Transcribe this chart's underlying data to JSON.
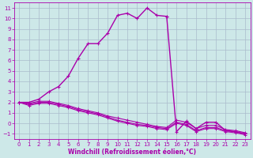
{
  "xlabel": "Windchill (Refroidissement éolien,°C)",
  "bg_color": "#cde8e8",
  "line_color": "#aa00aa",
  "grid_color": "#aabbcc",
  "xlim_min": -0.5,
  "xlim_max": 23.5,
  "ylim_min": -1.5,
  "ylim_max": 11.5,
  "xticks": [
    0,
    1,
    2,
    3,
    4,
    5,
    6,
    7,
    8,
    9,
    10,
    11,
    12,
    13,
    14,
    15,
    16,
    17,
    18,
    19,
    20,
    21,
    22,
    23
  ],
  "yticks": [
    -1,
    0,
    1,
    2,
    3,
    4,
    5,
    6,
    7,
    8,
    9,
    10,
    11
  ],
  "temp_line_x": [
    0,
    1,
    2,
    3,
    4,
    5,
    6,
    7,
    8,
    9,
    10,
    11,
    12,
    13,
    14,
    15,
    16,
    17,
    18,
    19,
    20,
    21,
    22,
    23
  ],
  "temp_line_y": [
    2.0,
    2.0,
    2.3,
    3.0,
    3.5,
    4.5,
    6.2,
    7.6,
    7.6,
    8.6,
    10.3,
    10.5,
    10.0,
    11.0,
    10.3,
    10.2,
    -0.8,
    0.2,
    -0.5,
    0.1,
    0.1,
    -0.7,
    -0.8,
    -1.0
  ],
  "wc1_x": [
    0,
    1,
    2,
    3,
    4,
    5,
    6,
    7,
    8,
    9,
    10,
    11,
    12,
    13,
    14,
    15,
    16,
    17,
    18,
    19,
    20,
    21,
    22,
    23
  ],
  "wc1_y": [
    2.0,
    1.9,
    2.1,
    2.1,
    1.9,
    1.7,
    1.4,
    1.2,
    1.0,
    0.7,
    0.5,
    0.3,
    0.1,
    -0.1,
    -0.3,
    -0.4,
    0.3,
    0.1,
    -0.5,
    -0.2,
    -0.2,
    -0.6,
    -0.7,
    -0.9
  ],
  "wc2_x": [
    0,
    1,
    2,
    3,
    4,
    5,
    6,
    7,
    8,
    9,
    10,
    11,
    12,
    13,
    14,
    15,
    16,
    17,
    18,
    19,
    20,
    21,
    22,
    23
  ],
  "wc2_y": [
    2.0,
    1.8,
    2.0,
    2.0,
    1.8,
    1.6,
    1.3,
    1.1,
    0.9,
    0.6,
    0.3,
    0.1,
    -0.1,
    -0.2,
    -0.4,
    -0.5,
    0.1,
    -0.1,
    -0.7,
    -0.4,
    -0.4,
    -0.7,
    -0.8,
    -1.0
  ],
  "wc3_x": [
    0,
    1,
    2,
    3,
    4,
    5,
    6,
    7,
    8,
    9,
    10,
    11,
    12,
    13,
    14,
    15,
    16,
    17,
    18,
    19,
    20,
    21,
    22,
    23
  ],
  "wc3_y": [
    2.0,
    1.7,
    1.9,
    1.9,
    1.7,
    1.5,
    1.2,
    1.0,
    0.8,
    0.5,
    0.2,
    0.0,
    -0.2,
    -0.3,
    -0.5,
    -0.6,
    0.0,
    -0.2,
    -0.8,
    -0.5,
    -0.5,
    -0.8,
    -0.9,
    -1.1
  ]
}
